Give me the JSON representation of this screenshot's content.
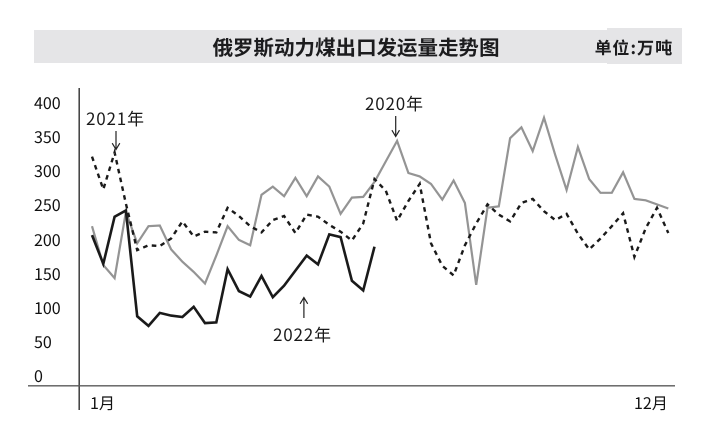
{
  "header": {
    "title": "俄罗斯动力煤出口发运量走势图",
    "unit_label": "单位:万吨"
  },
  "chart_data": {
    "type": "line",
    "title": "俄罗斯动力煤出口发运量走势图",
    "unit": "万吨",
    "xlabel_left": "1月",
    "xlabel_right": "12月",
    "ylim": [
      0,
      400
    ],
    "y_ticks": [
      400,
      350,
      300,
      250,
      200,
      150,
      100,
      50,
      0
    ],
    "x_weeks": 52,
    "grid": "off",
    "series": [
      {
        "name": "2020年",
        "line_style": "solid",
        "color": "#949494",
        "values": [
          218,
          161,
          142,
          239,
          193,
          218,
          219,
          184,
          166,
          151,
          134,
          175,
          218,
          198,
          190,
          264,
          276,
          262,
          289,
          262,
          291,
          276,
          236,
          260,
          261,
          283,
          313,
          343,
          296,
          291,
          280,
          257,
          285,
          252,
          132,
          245,
          247,
          347,
          363,
          328,
          377,
          322,
          271,
          334,
          287,
          267,
          267,
          297,
          258,
          256,
          250,
          244
        ]
      },
      {
        "name": "2021年",
        "line_style": "dashed",
        "color": "#1a1a1a",
        "values": [
          320,
          272,
          326,
          251,
          183,
          190,
          189,
          200,
          225,
          203,
          210,
          209,
          245,
          233,
          218,
          209,
          227,
          233,
          208,
          235,
          232,
          220,
          210,
          197,
          222,
          287,
          270,
          226,
          255,
          280,
          193,
          160,
          146,
          190,
          222,
          250,
          235,
          225,
          252,
          258,
          240,
          227,
          236,
          207,
          184,
          200,
          218,
          237,
          173,
          215,
          245,
          208
        ]
      },
      {
        "name": "2022年",
        "line_style": "solid",
        "color": "#1a1a1a",
        "values": [
          205,
          163,
          232,
          241,
          86,
          72,
          91,
          87,
          85,
          100,
          76,
          77,
          155,
          123,
          115,
          145,
          114,
          131,
          153,
          175,
          162,
          206,
          202,
          138,
          124,
          188
        ]
      }
    ],
    "annotations": [
      {
        "text": "2020年",
        "arrow": "down",
        "points_to": "2020 peak"
      },
      {
        "text": "2021年",
        "arrow": "down",
        "points_to": "2021 early peak"
      },
      {
        "text": "2022年",
        "arrow": "up",
        "points_to": "2022 line"
      }
    ]
  }
}
